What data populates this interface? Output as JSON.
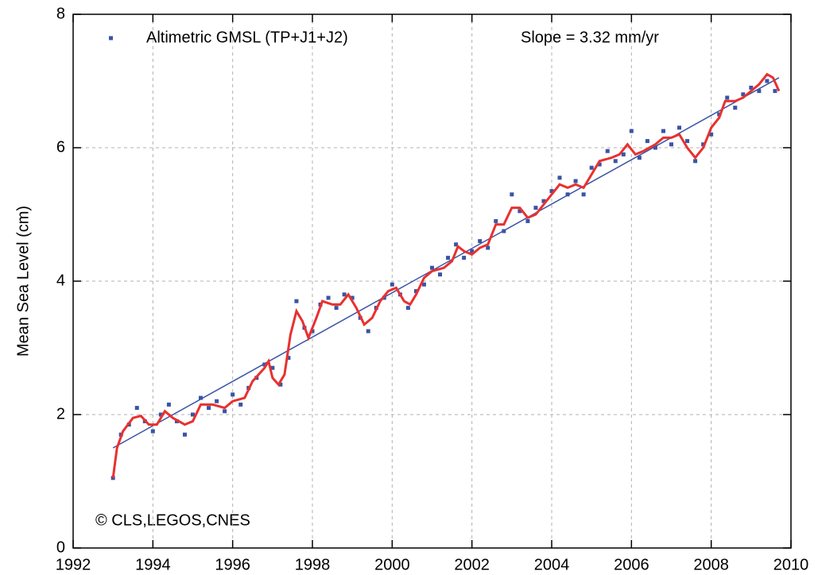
{
  "chart_data": {
    "type": "scatter",
    "y_label": "Mean Sea Level (cm)",
    "annotations": [
      "Slope = 3.32 mm/yr",
      "© CLS,LEGOS,CNES"
    ],
    "xlim": [
      1992,
      2010
    ],
    "xticks": [
      1992,
      1994,
      1996,
      1998,
      2000,
      2002,
      2004,
      2006,
      2008,
      2010
    ],
    "ylim": [
      0,
      8
    ],
    "yticks": [
      0,
      2,
      4,
      6,
      8
    ],
    "grid": true,
    "legend": "upper left",
    "series": [
      {
        "name": "Altimetric GMSL (TP+J1+J2)",
        "color": "#3a54a4",
        "mode": "markers",
        "x": [
          1993.0,
          1993.2,
          1993.4,
          1993.6,
          1993.8,
          1994.0,
          1994.2,
          1994.4,
          1994.6,
          1994.8,
          1995.0,
          1995.2,
          1995.4,
          1995.6,
          1995.8,
          1996.0,
          1996.2,
          1996.4,
          1996.6,
          1996.8,
          1997.0,
          1997.2,
          1997.4,
          1997.6,
          1997.8,
          1998.0,
          1998.2,
          1998.4,
          1998.6,
          1998.8,
          1999.0,
          1999.2,
          1999.4,
          1999.6,
          1999.8,
          2000.0,
          2000.2,
          2000.4,
          2000.6,
          2000.8,
          2001.0,
          2001.2,
          2001.4,
          2001.6,
          2001.8,
          2002.0,
          2002.2,
          2002.4,
          2002.6,
          2002.8,
          2003.0,
          2003.2,
          2003.4,
          2003.6,
          2003.8,
          2004.0,
          2004.2,
          2004.4,
          2004.6,
          2004.8,
          2005.0,
          2005.2,
          2005.4,
          2005.6,
          2005.8,
          2006.0,
          2006.2,
          2006.4,
          2006.6,
          2006.8,
          2007.0,
          2007.2,
          2007.4,
          2007.6,
          2007.8,
          2008.0,
          2008.2,
          2008.4,
          2008.6,
          2008.8,
          2009.0,
          2009.2,
          2009.4,
          2009.6
        ],
        "values": [
          1.05,
          1.7,
          1.85,
          2.1,
          1.9,
          1.75,
          2.0,
          2.15,
          1.9,
          1.7,
          2.0,
          2.25,
          2.1,
          2.2,
          2.05,
          2.3,
          2.15,
          2.4,
          2.55,
          2.75,
          2.7,
          2.45,
          2.85,
          3.7,
          3.3,
          3.25,
          3.65,
          3.75,
          3.6,
          3.8,
          3.75,
          3.45,
          3.25,
          3.6,
          3.75,
          3.95,
          3.8,
          3.6,
          3.85,
          3.95,
          4.2,
          4.1,
          4.35,
          4.55,
          4.35,
          4.45,
          4.6,
          4.5,
          4.9,
          4.75,
          5.3,
          5.05,
          4.9,
          5.1,
          5.2,
          5.35,
          5.55,
          5.3,
          5.5,
          5.3,
          5.7,
          5.75,
          5.95,
          5.8,
          5.9,
          6.25,
          5.85,
          6.1,
          6.0,
          6.25,
          6.05,
          6.3,
          6.1,
          5.8,
          6.05,
          6.2,
          6.5,
          6.75,
          6.6,
          6.8,
          6.9,
          6.85,
          7.0,
          6.85
        ]
      },
      {
        "color": "#e8312f",
        "mode": "line",
        "x": [
          1993.0,
          1993.1,
          1993.25,
          1993.5,
          1993.7,
          1993.9,
          1994.1,
          1994.3,
          1994.5,
          1994.8,
          1995.0,
          1995.2,
          1995.5,
          1995.8,
          1996.0,
          1996.3,
          1996.5,
          1996.8,
          1996.9,
          1997.0,
          1997.15,
          1997.3,
          1997.45,
          1997.6,
          1997.75,
          1997.9,
          1998.1,
          1998.25,
          1998.5,
          1998.7,
          1998.9,
          1999.1,
          1999.3,
          1999.5,
          1999.7,
          1999.9,
          2000.1,
          2000.3,
          2000.45,
          2000.6,
          2000.8,
          2001.0,
          2001.3,
          2001.5,
          2001.65,
          2001.8,
          2002.0,
          2002.2,
          2002.4,
          2002.6,
          2002.8,
          2003.0,
          2003.2,
          2003.4,
          2003.6,
          2003.8,
          2004.0,
          2004.2,
          2004.4,
          2004.6,
          2004.8,
          2005.0,
          2005.2,
          2005.5,
          2005.7,
          2005.9,
          2006.1,
          2006.3,
          2006.6,
          2006.8,
          2007.0,
          2007.2,
          2007.4,
          2007.6,
          2007.8,
          2008.0,
          2008.2,
          2008.35,
          2008.6,
          2008.8,
          2009.0,
          2009.2,
          2009.4,
          2009.55,
          2009.7
        ],
        "values": [
          1.05,
          1.5,
          1.75,
          1.95,
          1.98,
          1.85,
          1.85,
          2.05,
          1.95,
          1.85,
          1.9,
          2.15,
          2.15,
          2.1,
          2.2,
          2.25,
          2.5,
          2.7,
          2.8,
          2.55,
          2.45,
          2.6,
          3.2,
          3.55,
          3.4,
          3.15,
          3.45,
          3.7,
          3.65,
          3.65,
          3.8,
          3.6,
          3.35,
          3.45,
          3.7,
          3.85,
          3.9,
          3.7,
          3.65,
          3.8,
          4.05,
          4.15,
          4.2,
          4.3,
          4.52,
          4.45,
          4.4,
          4.5,
          4.55,
          4.85,
          4.85,
          5.1,
          5.1,
          4.95,
          5.0,
          5.15,
          5.3,
          5.45,
          5.4,
          5.45,
          5.4,
          5.6,
          5.8,
          5.85,
          5.9,
          6.05,
          5.9,
          5.95,
          6.05,
          6.15,
          6.15,
          6.2,
          6.0,
          5.85,
          6.0,
          6.3,
          6.45,
          6.7,
          6.7,
          6.75,
          6.85,
          6.95,
          7.1,
          7.05,
          6.85
        ]
      },
      {
        "color": "#3a54a4",
        "mode": "trend",
        "x": [
          1993.0,
          2009.7
        ],
        "values": [
          1.5,
          7.05
        ]
      }
    ]
  }
}
